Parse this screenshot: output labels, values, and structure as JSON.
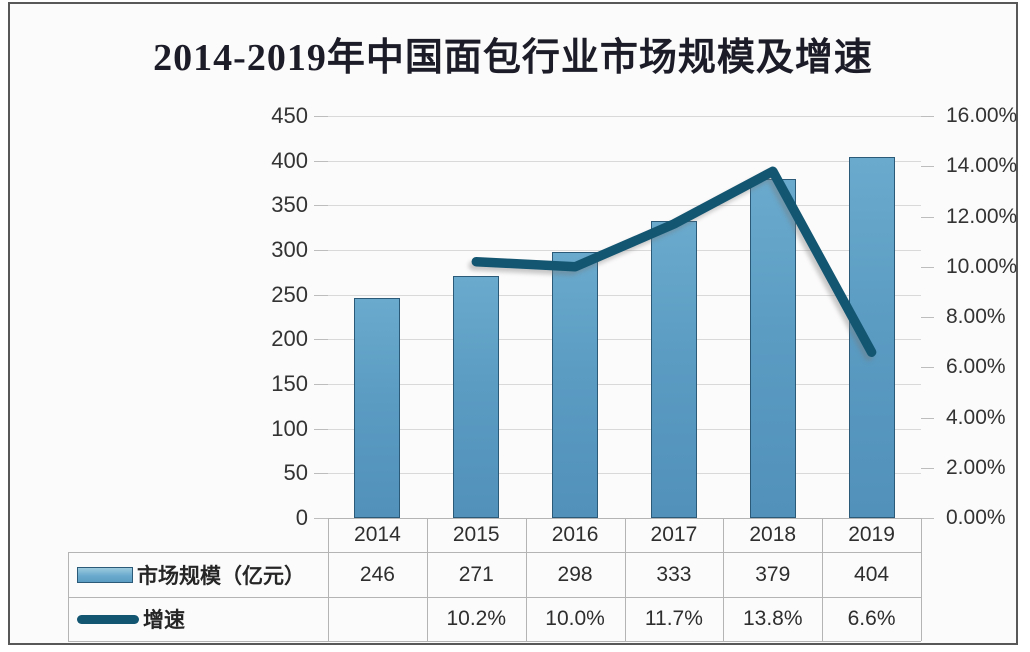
{
  "title": "2014-2019年中国面包行业市场规模及增速",
  "chart_data": {
    "type": "bar",
    "subtype": "combo-bar-line",
    "title": "2014-2019年中国面包行业市场规模及增速",
    "categories": [
      "2014",
      "2015",
      "2016",
      "2017",
      "2018",
      "2019"
    ],
    "series": [
      {
        "name": "市场规模（亿元）",
        "type": "bar",
        "axis": "left",
        "values": [
          246,
          271,
          298,
          333,
          379,
          404
        ],
        "labels": [
          "246",
          "271",
          "298",
          "333",
          "379",
          "404"
        ]
      },
      {
        "name": "增速",
        "type": "line",
        "axis": "right",
        "values": [
          null,
          10.2,
          10.0,
          11.7,
          13.8,
          6.6
        ],
        "labels": [
          "",
          "10.2%",
          "10.0%",
          "11.7%",
          "13.8%",
          "6.6%"
        ]
      }
    ],
    "left_axis": {
      "min": 0,
      "max": 450,
      "step": 50,
      "tick_labels": [
        "0",
        "50",
        "100",
        "150",
        "200",
        "250",
        "300",
        "350",
        "400",
        "450"
      ]
    },
    "right_axis": {
      "min": 0,
      "max": 16,
      "step": 2,
      "tick_labels": [
        "0.00%",
        "2.00%",
        "4.00%",
        "6.00%",
        "8.00%",
        "10.00%",
        "12.00%",
        "14.00%",
        "16.00%"
      ]
    },
    "grid": true,
    "legend_position": "table-left"
  },
  "colors": {
    "bar_fill": "#5b9cc3",
    "bar_border": "#2a5a78",
    "line": "#135672",
    "grid": "#d9d9d9",
    "table_border": "#b4b4b4",
    "axis_text": "#333333",
    "title_text": "#1c1c28",
    "frame_border": "#585858",
    "background": "#fcfbfb"
  }
}
